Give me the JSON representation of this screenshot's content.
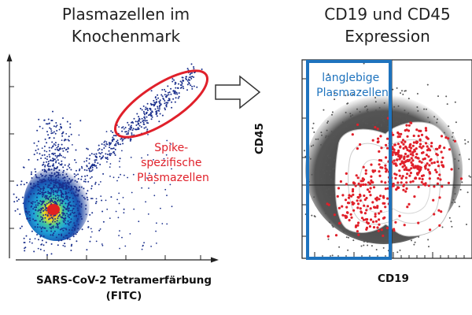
{
  "left_panel": {
    "title_line1": "Plasmazellen im",
    "title_line2": "Knochenmark",
    "xlabel_line1": "SARS-CoV-2 Tetramerfärbung",
    "xlabel_line2": "(FITC)",
    "gate_label_line1": "Spike-",
    "gate_label_line2": "spezifische",
    "gate_label_line3": "Plasmazellen",
    "gate_color": "#e0202a"
  },
  "right_panel": {
    "title_line1": "CD19 und CD45",
    "title_line2": "Expression",
    "xlabel": "CD19",
    "ylabel": "CD45",
    "gate_label_line1": "langlebige",
    "gate_label_line2": "Plasmazellen",
    "gate_color": "#1e73be",
    "dot_color": "#e0202a"
  },
  "arrow": {
    "icon": "hollow-right-arrow-icon"
  },
  "colors": {
    "density_low": "#1a2f8c",
    "density_mid": "#1fa3d8",
    "density_high": "#e8e02a",
    "density_peak": "#e02020",
    "background_events": "#555555"
  }
}
